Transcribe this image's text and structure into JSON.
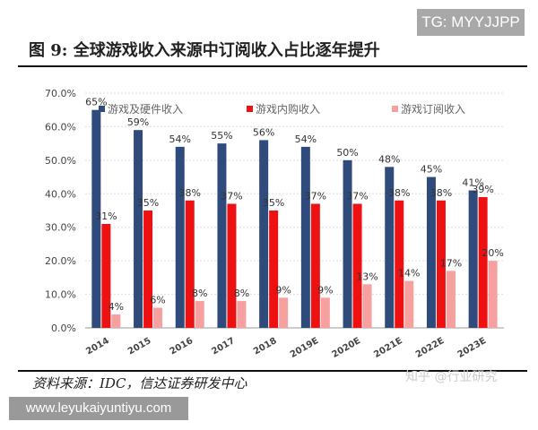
{
  "watermark_tg": "TG: MYYJJPP",
  "figure_title": "图 9: 全球游戏收入来源中订阅收入占比逐年提升",
  "source": "资料来源：IDC，信达证券研发中心",
  "watermark_url": "www.leyukaiyuntiyu.com",
  "watermark_zhihu": "知乎 @行业研究",
  "chart_data": {
    "type": "bar",
    "categories": [
      "2014",
      "2015",
      "2016",
      "2017",
      "2018",
      "2019E",
      "2020E",
      "2021E",
      "2022E",
      "2023E"
    ],
    "series": [
      {
        "name": "游戏及硬件收入",
        "color": "#2f4b7c",
        "values": [
          65,
          59,
          54,
          55,
          56,
          54,
          50,
          48,
          45,
          41
        ]
      },
      {
        "name": "游戏内购收入",
        "color": "#ee1111",
        "values": [
          31,
          35,
          38,
          37,
          35,
          37,
          37,
          38,
          38,
          39
        ]
      },
      {
        "name": "游戏订阅收入",
        "color": "#f7a0a0",
        "values": [
          4,
          6,
          8,
          8,
          9,
          9,
          13,
          14,
          17,
          20
        ]
      }
    ],
    "data_labels": [
      "65%",
      "31%",
      "4%",
      "59%",
      "35%",
      "6%",
      "54%",
      "38%",
      "8%",
      "55%",
      "37%",
      "8%",
      "56%",
      "35%",
      "9%",
      "54%",
      "37%",
      "9%",
      "50%",
      "37%",
      "13%",
      "48%",
      "38%",
      "14%",
      "45%",
      "38%",
      "17%",
      "41%",
      "39%",
      "20%"
    ],
    "ylim": [
      0,
      70
    ],
    "yticks": [
      "0.0%",
      "10.0%",
      "20.0%",
      "30.0%",
      "40.0%",
      "50.0%",
      "60.0%",
      "70.0%"
    ],
    "grid": true,
    "legend": "top"
  }
}
